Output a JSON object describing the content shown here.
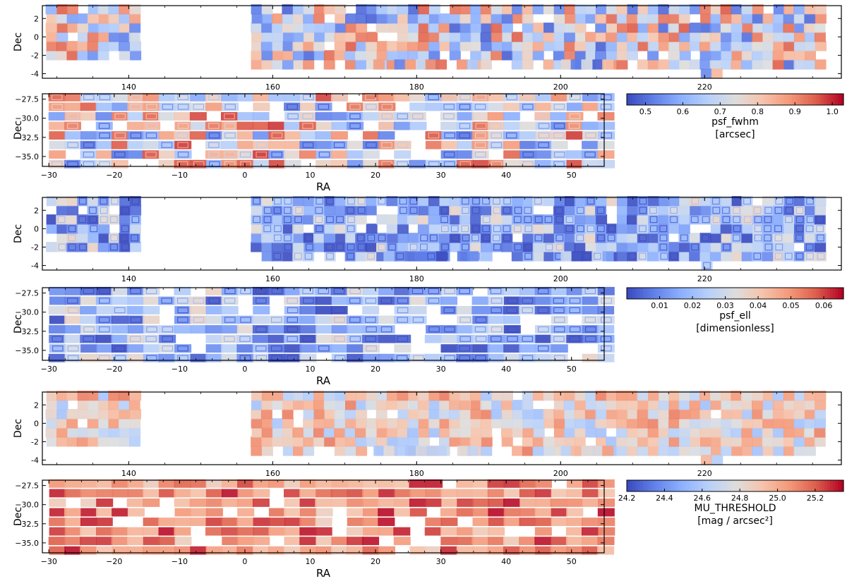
{
  "figure": {
    "description_sets": [
      "psf_fwhm",
      "psf_ell",
      "MU_THRESHOLD"
    ]
  },
  "chart_data": [
    {
      "type": "heatmap",
      "name": "psf_fwhm-north",
      "xlim": [
        128,
        239
      ],
      "ylim": [
        -4.5,
        3.4
      ],
      "xticks": [
        140,
        160,
        180,
        200,
        220
      ],
      "xtick_labels": [
        "140",
        "160",
        "180",
        "200",
        "220"
      ],
      "yticks": [
        2,
        0,
        -2,
        -4
      ],
      "ytick_labels": [
        "2",
        "0",
        "-2",
        "-4"
      ],
      "xlabel": "",
      "ylabel": "Dec",
      "segments": [
        [
          128.5,
          141.5,
          -2,
          3
        ],
        [
          157,
          236.5,
          -3,
          3
        ]
      ],
      "extra_rows": [
        [
          174,
          188,
          -3
        ],
        [
          200,
          206,
          -3
        ],
        [
          219.5,
          221.5,
          -4
        ]
      ],
      "gaps": [
        [
          166,
          -3
        ],
        [
          173,
          1
        ],
        [
          184,
          -3
        ],
        [
          191,
          -3
        ],
        [
          197,
          2
        ]
      ],
      "color_range": [
        0.45,
        1.03
      ],
      "mean_value": 0.72,
      "spread": 0.15
    },
    {
      "type": "heatmap",
      "name": "psf_fwhm-south",
      "xlim": [
        -31,
        55
      ],
      "ylim": [
        -36.3,
        -26.8
      ],
      "xticks": [
        -30,
        -20,
        -10,
        0,
        10,
        20,
        30,
        40,
        50
      ],
      "xtick_labels": [
        "−30",
        "−20",
        "−10",
        "0",
        "10",
        "20",
        "30",
        "40",
        "50"
      ],
      "yticks": [
        -27.5,
        -30,
        -32.5,
        -35
      ],
      "ytick_labels": [
        "−27.5",
        "−30.0",
        "−32.5",
        "−35.0"
      ],
      "xlabel": "RA",
      "ylabel": "Dec",
      "segments": [
        [
          -30,
          54,
          -36,
          -27
        ]
      ],
      "extra_rows": [],
      "gaps": [
        [
          -14,
          -31
        ],
        [
          -8,
          -34
        ],
        [
          3,
          -29
        ],
        [
          12,
          -30
        ],
        [
          19,
          -33
        ],
        [
          22,
          -32
        ],
        [
          24,
          -34
        ],
        [
          25,
          -35
        ],
        [
          26,
          -33
        ],
        [
          27,
          -35
        ],
        [
          27,
          -31
        ],
        [
          21,
          -35
        ]
      ],
      "color_range": [
        0.45,
        1.03
      ],
      "mean_value": 0.75,
      "spread": 0.15
    },
    {
      "type": "colorbar",
      "name": "psf_fwhm-colorbar",
      "label": "psf_fwhm",
      "units": "[arcsec]",
      "range": [
        0.45,
        1.03
      ],
      "ticks": [
        0.5,
        0.6,
        0.7,
        0.8,
        0.9,
        1.0
      ],
      "tick_labels": [
        "0.5",
        "0.6",
        "0.7",
        "0.8",
        "0.9",
        "1.0"
      ],
      "colormap": "coolwarm"
    },
    {
      "type": "heatmap",
      "name": "psf_ell-north",
      "xlim": [
        128,
        239
      ],
      "ylim": [
        -4.5,
        3.4
      ],
      "xticks": [
        140,
        160,
        180,
        200,
        220
      ],
      "xtick_labels": [
        "140",
        "160",
        "180",
        "200",
        "220"
      ],
      "yticks": [
        2,
        0,
        -2,
        -4
      ],
      "ytick_labels": [
        "2",
        "0",
        "-2",
        "-4"
      ],
      "xlabel": "",
      "ylabel": "Dec",
      "segments": [
        [
          128.5,
          141.5,
          -2,
          3
        ],
        [
          157,
          236.5,
          -3,
          3
        ]
      ],
      "extra_rows": [
        [
          174,
          188,
          -3
        ],
        [
          200,
          206,
          -3
        ],
        [
          219.5,
          221.5,
          -4
        ]
      ],
      "gaps": [
        [
          166,
          -3
        ],
        [
          173,
          1
        ],
        [
          184,
          -3
        ],
        [
          191,
          -3
        ],
        [
          197,
          2
        ]
      ],
      "color_range": [
        0.0,
        0.066
      ],
      "mean_value": 0.018,
      "spread": 0.012
    },
    {
      "type": "heatmap",
      "name": "psf_ell-south",
      "xlim": [
        -31,
        55
      ],
      "ylim": [
        -36.3,
        -26.8
      ],
      "xticks": [
        -30,
        -20,
        -10,
        0,
        10,
        20,
        30,
        40,
        50
      ],
      "xtick_labels": [
        "−30",
        "−20",
        "−10",
        "0",
        "10",
        "20",
        "30",
        "40",
        "50"
      ],
      "yticks": [
        -27.5,
        -30,
        -32.5,
        -35
      ],
      "ytick_labels": [
        "−27.5",
        "−30.0",
        "−32.5",
        "−35.0"
      ],
      "xlabel": "RA",
      "ylabel": "Dec",
      "segments": [
        [
          -30,
          54,
          -36,
          -27
        ]
      ],
      "extra_rows": [],
      "gaps": [
        [
          -14,
          -31
        ],
        [
          -8,
          -34
        ],
        [
          3,
          -29
        ],
        [
          12,
          -30
        ],
        [
          19,
          -33
        ],
        [
          22,
          -32
        ],
        [
          24,
          -34
        ],
        [
          25,
          -35
        ],
        [
          26,
          -33
        ],
        [
          27,
          -35
        ],
        [
          27,
          -31
        ],
        [
          21,
          -35
        ]
      ],
      "color_range": [
        0.0,
        0.066
      ],
      "mean_value": 0.018,
      "spread": 0.012
    },
    {
      "type": "colorbar",
      "name": "psf_ell-colorbar",
      "label": "psf_ell",
      "units": "[dimensionless]",
      "range": [
        0.0,
        0.066
      ],
      "ticks": [
        0.01,
        0.02,
        0.03,
        0.04,
        0.05,
        0.06
      ],
      "tick_labels": [
        "0.01",
        "0.02",
        "0.03",
        "0.04",
        "0.05",
        "0.06"
      ],
      "colormap": "coolwarm"
    },
    {
      "type": "heatmap",
      "name": "mu-north",
      "xlim": [
        128,
        239
      ],
      "ylim": [
        -4.5,
        3.4
      ],
      "xticks": [
        140,
        160,
        180,
        200,
        220
      ],
      "xtick_labels": [
        "140",
        "160",
        "180",
        "200",
        "220"
      ],
      "yticks": [
        2,
        0,
        -2,
        -4
      ],
      "ytick_labels": [
        "2",
        "0",
        "-2",
        "-4"
      ],
      "xlabel": "",
      "ylabel": "Dec",
      "segments": [
        [
          128.5,
          141.5,
          -2,
          3
        ],
        [
          157,
          236.5,
          -3,
          3
        ]
      ],
      "extra_rows": [
        [
          174,
          188,
          -3
        ],
        [
          200,
          206,
          -3
        ],
        [
          219.5,
          221.5,
          -4
        ]
      ],
      "gaps": [
        [
          166,
          -3
        ],
        [
          173,
          1
        ],
        [
          184,
          -3
        ],
        [
          191,
          -3
        ],
        [
          197,
          2
        ]
      ],
      "color_range": [
        24.2,
        25.35
      ],
      "mean_value": 24.85,
      "spread": 0.18
    },
    {
      "type": "heatmap",
      "name": "mu-south",
      "xlim": [
        -31,
        55
      ],
      "ylim": [
        -36.3,
        -26.8
      ],
      "xticks": [
        -30,
        -20,
        -10,
        0,
        10,
        20,
        30,
        40,
        50
      ],
      "xtick_labels": [
        "−30",
        "−20",
        "−10",
        "0",
        "10",
        "20",
        "30",
        "40",
        "50"
      ],
      "yticks": [
        -27.5,
        -30,
        -32.5,
        -35
      ],
      "ytick_labels": [
        "−27.5",
        "−30.0",
        "−32.5",
        "−35.0"
      ],
      "xlabel": "RA",
      "ylabel": "Dec",
      "segments": [
        [
          -30,
          54,
          -36,
          -27
        ]
      ],
      "extra_rows": [],
      "gaps": [
        [
          -14,
          -31
        ],
        [
          -8,
          -34
        ],
        [
          3,
          -29
        ],
        [
          12,
          -30
        ],
        [
          19,
          -33
        ],
        [
          22,
          -32
        ],
        [
          24,
          -34
        ],
        [
          25,
          -35
        ],
        [
          26,
          -33
        ],
        [
          27,
          -35
        ],
        [
          27,
          -31
        ],
        [
          21,
          -35
        ]
      ],
      "color_range": [
        24.2,
        25.35
      ],
      "mean_value": 25.1,
      "spread": 0.15
    },
    {
      "type": "colorbar",
      "name": "mu-colorbar",
      "label": "MU_THRESHOLD",
      "units": "[mag / arcsec²]",
      "range": [
        24.2,
        25.35
      ],
      "ticks": [
        24.2,
        24.4,
        24.6,
        24.8,
        25.0,
        25.2
      ],
      "tick_labels": [
        "24.2",
        "24.4",
        "24.6",
        "24.8",
        "25.0",
        "25.2"
      ],
      "colormap": "coolwarm"
    }
  ]
}
